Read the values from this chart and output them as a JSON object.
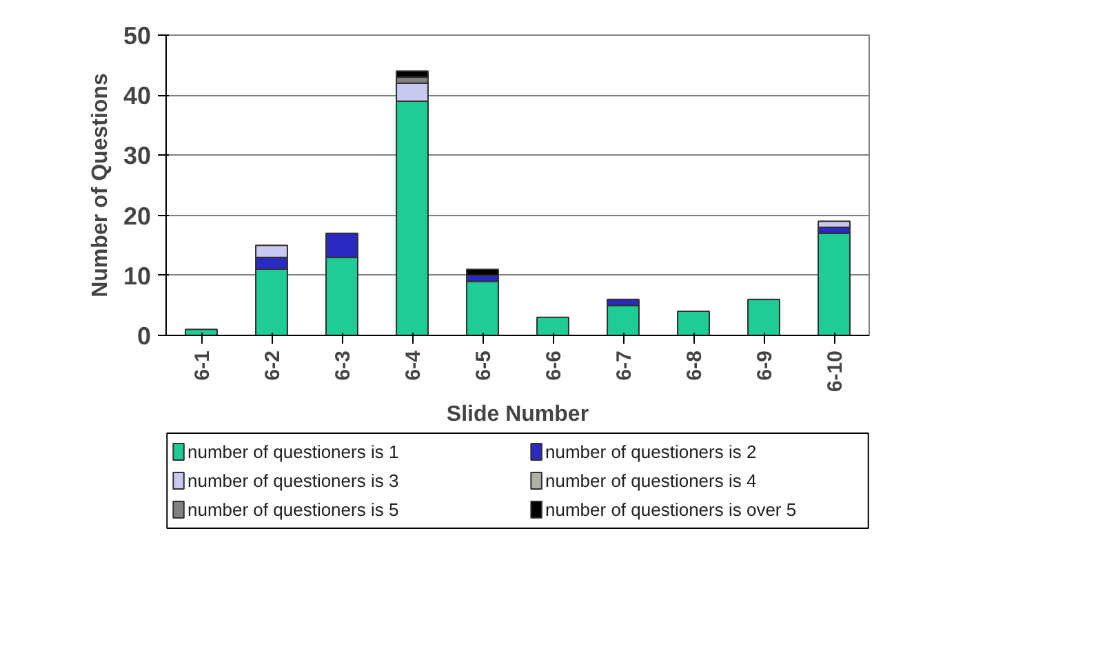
{
  "chart_data": {
    "type": "bar",
    "stacked": true,
    "xlabel": "Slide Number",
    "ylabel": "Number of Questions",
    "categories": [
      "6-1",
      "6-2",
      "6-3",
      "6-4",
      "6-5",
      "6-6",
      "6-7",
      "6-8",
      "6-9",
      "6-10"
    ],
    "series": [
      {
        "name": "number of questioners is 1",
        "color": "#1fcc96",
        "values": [
          1,
          11,
          13,
          39,
          9,
          3,
          5,
          4,
          6,
          17
        ]
      },
      {
        "name": "number of questioners is 2",
        "color": "#2a2ac0",
        "values": [
          0,
          2,
          4,
          0,
          1,
          0,
          1,
          0,
          0,
          1
        ]
      },
      {
        "name": "number of questioners is 3",
        "color": "#c8c8f0",
        "values": [
          0,
          2,
          0,
          3,
          0,
          0,
          0,
          0,
          0,
          1
        ]
      },
      {
        "name": "number of questioners is 4",
        "color": "#b0b0a8",
        "values": [
          0,
          0,
          0,
          0,
          0,
          0,
          0,
          0,
          0,
          0
        ]
      },
      {
        "name": "number of questioners is 5",
        "color": "#808080",
        "values": [
          0,
          0,
          0,
          1,
          0,
          0,
          0,
          0,
          0,
          0
        ]
      },
      {
        "name": "number of questioners is over 5",
        "color": "#000000",
        "values": [
          0,
          0,
          0,
          1,
          1,
          0,
          0,
          0,
          0,
          0
        ]
      }
    ],
    "ylim": [
      0,
      50
    ],
    "yticks": [
      0,
      10,
      20,
      30,
      40,
      50
    ],
    "grid": "y",
    "legend": "bottom"
  }
}
